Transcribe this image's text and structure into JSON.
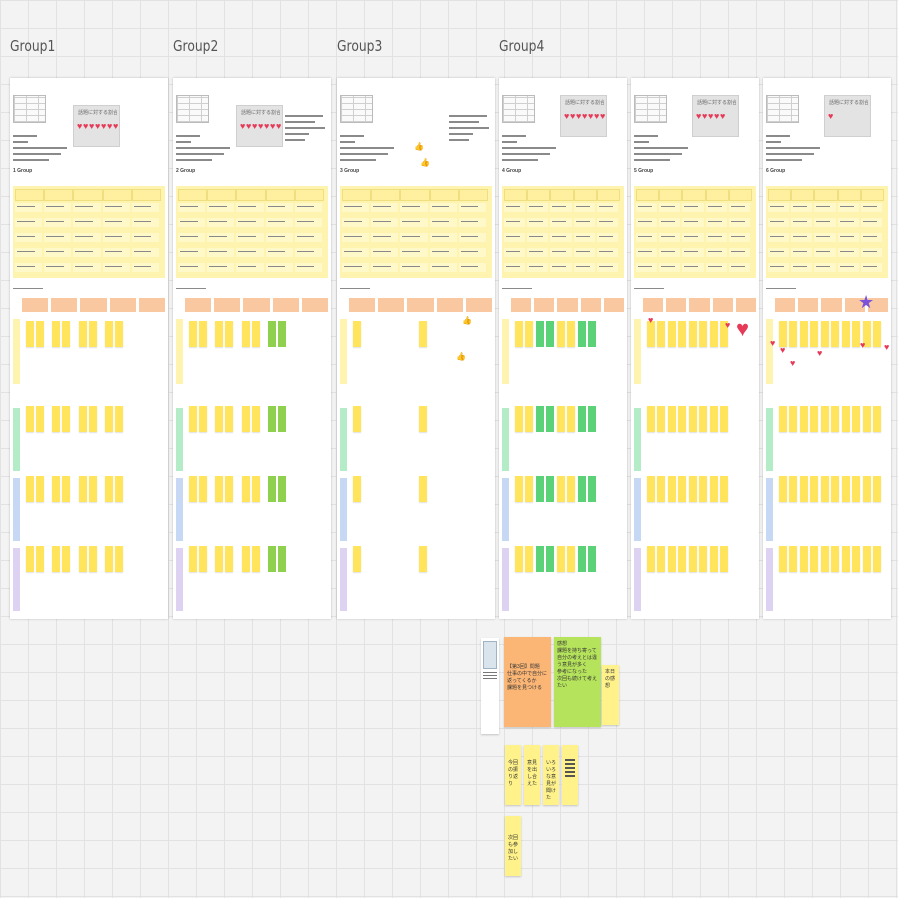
{
  "groups": [
    {
      "title": "Group1",
      "tag": "1 Group",
      "chart_title": "話題に対する割合(2個)"
    },
    {
      "title": "Group2",
      "tag": "2 Group",
      "chart_title": "話題に対する割合(2個)"
    },
    {
      "title": "Group3",
      "tag": "3 Group"
    },
    {
      "title": "Group4",
      "tag": "4 Group",
      "chart_title": "話題に対する割合(2個)"
    },
    {
      "tag": "5 Group",
      "chart_title": "話題に対する割合(2個)"
    },
    {
      "tag": "6 Group",
      "chart_title": "話題に対する割合(2個)"
    }
  ],
  "notes": {
    "orange": {
      "lines": [
        "【第3回】問題",
        "仕事の中で自分に返ってくるか",
        "課題を見つける"
      ]
    },
    "green": {
      "lines": [
        "感想",
        "課題を持ち寄って",
        "自分の考えとは違う意見が多く",
        "参考になった",
        "次回も続けて考えたい"
      ]
    },
    "side": {
      "text": "本日の感想"
    },
    "bottom1": {
      "text": "今回の振り返り"
    },
    "bottom2": {
      "text": "意見を出し合えた"
    },
    "bottom3": {
      "text": "いろいろな意見が聞けた"
    },
    "bottom5": {
      "text": "次回も参加したい"
    }
  },
  "colors": {
    "canvas": "#f3f3f3",
    "sticky_yellow": "#ffe45c",
    "sticky_green": "#5bd178",
    "sticky_lime": "#8fd14f",
    "header_orange": "#f9c8a0",
    "band_yellow": "#fff3b0",
    "band_green": "#b3ecc6",
    "band_blue": "#c7d8f5",
    "band_purple": "#ddd2f2",
    "note_orange": "#fbb676",
    "note_green": "#b5e35c",
    "heart": "#e63a58",
    "star": "#7b52d8"
  },
  "icons": [
    "heart-icon",
    "star-icon",
    "thumbs-up-icon",
    "embedded-document-icon"
  ]
}
